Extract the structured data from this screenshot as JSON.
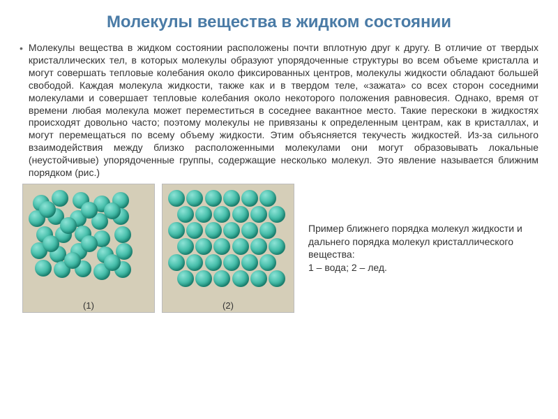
{
  "title": "Молекулы вещества в жидком состоянии",
  "bullet": "•",
  "paragraph": "Молекулы вещества в жидком состоянии расположены почти вплотную друг к другу. В отличие от твердых кристаллических тел, в которых молекулы образуют упорядоченные структуры во всем объеме кристалла и могут совершать тепловые колебания около фиксированных центров, молекулы жидкости обладают большей свободой. Каждая молекула жидкости, также как и в твердом теле, «зажата» со всех сторон соседними молекулами и совершает тепловые колебания около некоторого положения равновесия. Однако, время от времени любая молекула может переместиться в соседнее вакантное место. Такие перескоки в жидкостях происходят довольно часто; поэтому молекулы не привязаны к определенным центрам, как в кристаллах, и могут перемещаться по всему объему жидкости. Этим объясняется текучесть жидкостей. Из-за сильного взаимодействия между близко расположенными молекулами они могут образовывать локальные (неустойчивые) упорядоченные группы, содержащие несколько молекул. Это явление называется ближним порядком (рис.)",
  "caption": "Пример ближнего порядка молекул жидкости и дальнего порядка молекул кристаллического вещества:\n1 – вода; 2 – лед.",
  "diagram": {
    "panel1_label": "(1)",
    "panel2_label": "(2)",
    "panel_bg": "#d5ceb8",
    "border_color": "#bbbbbb",
    "sphere_gradient_top": "#8de3d6",
    "sphere_gradient_bottom": "#0e6b5a",
    "liquid": {
      "sphere_diameter": 24,
      "positions": [
        [
          0.04,
          0.05
        ],
        [
          0.22,
          0.0
        ],
        [
          0.42,
          0.02
        ],
        [
          0.62,
          0.06
        ],
        [
          0.8,
          0.02
        ],
        [
          0.0,
          0.22
        ],
        [
          0.18,
          0.2
        ],
        [
          0.39,
          0.22
        ],
        [
          0.6,
          0.25
        ],
        [
          0.8,
          0.2
        ],
        [
          0.07,
          0.4
        ],
        [
          0.25,
          0.4
        ],
        [
          0.44,
          0.39
        ],
        [
          0.62,
          0.44
        ],
        [
          0.82,
          0.4
        ],
        [
          0.02,
          0.57
        ],
        [
          0.2,
          0.61
        ],
        [
          0.4,
          0.58
        ],
        [
          0.65,
          0.62
        ],
        [
          0.83,
          0.58
        ],
        [
          0.06,
          0.76
        ],
        [
          0.24,
          0.78
        ],
        [
          0.44,
          0.77
        ],
        [
          0.62,
          0.8
        ],
        [
          0.82,
          0.78
        ],
        [
          0.1,
          0.12
        ],
        [
          0.5,
          0.13
        ],
        [
          0.72,
          0.14
        ],
        [
          0.3,
          0.3
        ],
        [
          0.5,
          0.5
        ],
        [
          0.13,
          0.5
        ],
        [
          0.72,
          0.7
        ],
        [
          0.34,
          0.68
        ]
      ]
    },
    "crystal": {
      "sphere_diameter": 24,
      "rows": 6,
      "cols": 6,
      "spacing_x": 0.175,
      "spacing_y": 0.175,
      "row_offset_odd": 0.085
    }
  }
}
